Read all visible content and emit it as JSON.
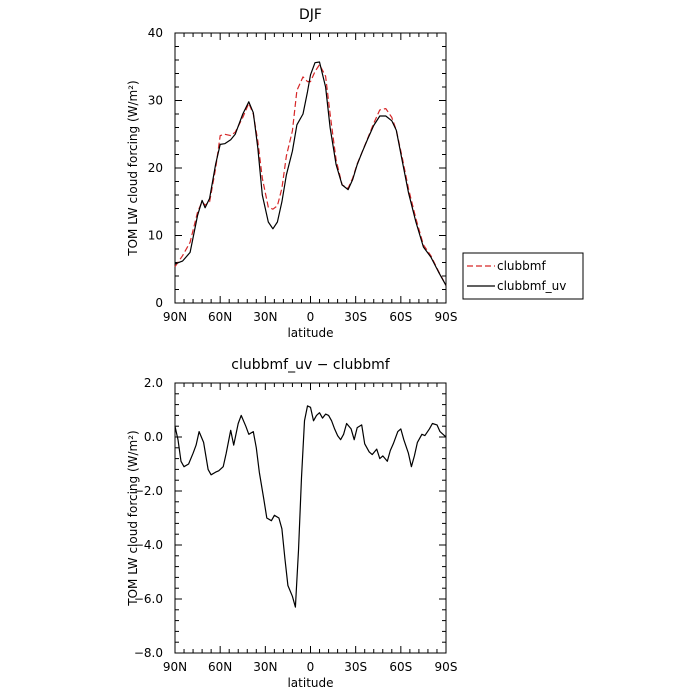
{
  "chart_data": [
    {
      "type": "line",
      "title": "DJF",
      "xlabel": "latitude",
      "ylabel": "TOM LW cloud forcing (W/m²)",
      "xlim": [
        90,
        -90
      ],
      "ylim": [
        0,
        40
      ],
      "x_ticks": [
        90,
        60,
        30,
        0,
        -30,
        -60,
        -90
      ],
      "x_tick_labels": [
        "90N",
        "60N",
        "30N",
        "0",
        "30S",
        "60S",
        "90S"
      ],
      "y_ticks": [
        0,
        10,
        20,
        30,
        40
      ],
      "y_tick_labels": [
        "0",
        "10",
        "20",
        "30",
        "40"
      ],
      "legend_position": "right-bottom outside",
      "series": [
        {
          "name": "clubbmf",
          "color": "#d62728",
          "dash": "dashed",
          "x": [
            90,
            85,
            80,
            75,
            72,
            70,
            67,
            63,
            60,
            57,
            53,
            50,
            45,
            41,
            38,
            35,
            32,
            28,
            25,
            22,
            19,
            16,
            12,
            9,
            5,
            2,
            0,
            -3,
            -6,
            -10,
            -13,
            -17,
            -21,
            -25,
            -28,
            -31,
            -34,
            -38,
            -42,
            -46,
            -50,
            -54,
            -57,
            -61,
            -65,
            -70,
            -75,
            -80,
            -85,
            -90
          ],
          "y": [
            5.4,
            7,
            9,
            13.5,
            15,
            14.5,
            15,
            20,
            24.8,
            25,
            24.8,
            25.3,
            27.5,
            29.6,
            28,
            24,
            18.5,
            14.2,
            13.9,
            14.4,
            17,
            21.8,
            25.5,
            31.5,
            33.5,
            32.8,
            32.8,
            34.3,
            35.3,
            33.6,
            28,
            21.2,
            17.5,
            17,
            18.5,
            20.6,
            22.2,
            24.4,
            26.6,
            28.6,
            28.8,
            27.5,
            25.6,
            21.5,
            17,
            12.5,
            8.6,
            7,
            4.7,
            2.6
          ]
        },
        {
          "name": "clubbmf_uv",
          "color": "#000000",
          "dash": "solid",
          "x": [
            90,
            85,
            80,
            75,
            72,
            70,
            67,
            63,
            60,
            57,
            53,
            50,
            45,
            41,
            38,
            35,
            32,
            28,
            25,
            22,
            19,
            16,
            12,
            9,
            5,
            2,
            0,
            -3,
            -6,
            -10,
            -13,
            -17,
            -21,
            -25,
            -28,
            -31,
            -34,
            -38,
            -42,
            -46,
            -50,
            -54,
            -57,
            -61,
            -65,
            -70,
            -75,
            -80,
            -85,
            -90
          ],
          "y": [
            5.8,
            6.2,
            7.5,
            13,
            15.2,
            14.1,
            15.5,
            20.6,
            23.5,
            23.6,
            24.2,
            25,
            28,
            29.8,
            28.2,
            23,
            16,
            12,
            11,
            12,
            15,
            19,
            22.5,
            26.4,
            28,
            31.3,
            33.8,
            35.6,
            35.7,
            32,
            26,
            20.5,
            17.5,
            16.8,
            18.3,
            20.5,
            22.2,
            24.3,
            26.3,
            27.7,
            27.7,
            27,
            25.6,
            21,
            16.4,
            12,
            8.3,
            6.8,
            4.6,
            2.6
          ]
        }
      ]
    },
    {
      "type": "line",
      "title": "clubbmf_uv − clubbmf",
      "xlabel": "latitude",
      "ylabel": "TOM LW cloud forcing (W/m²)",
      "xlim": [
        90,
        -90
      ],
      "ylim": [
        -8,
        2
      ],
      "x_ticks": [
        90,
        60,
        30,
        0,
        -30,
        -60,
        -90
      ],
      "x_tick_labels": [
        "90N",
        "60N",
        "30N",
        "0",
        "30S",
        "60S",
        "90S"
      ],
      "y_ticks": [
        -8,
        -6,
        -4,
        -2,
        0,
        2
      ],
      "y_tick_labels": [
        "−8.0",
        "−6.0",
        "−4.0",
        "−2.0",
        "0.0",
        "2.0"
      ],
      "series": [
        {
          "color": "#000000",
          "dash": "solid",
          "x": [
            90,
            88,
            86,
            84,
            81,
            78,
            76,
            74,
            71,
            68,
            66,
            63,
            61,
            58,
            56,
            53,
            51,
            48,
            46,
            43,
            41,
            38,
            36,
            34,
            31,
            29,
            26,
            24,
            21,
            19,
            17,
            15,
            12,
            10,
            8,
            6,
            4,
            2,
            0,
            -2,
            -4,
            -6,
            -8,
            -10,
            -12,
            -14,
            -16,
            -18,
            -20,
            -22,
            -24,
            -27,
            -29,
            -31,
            -34,
            -36,
            -39,
            -41,
            -44,
            -46,
            -48,
            -51,
            -53,
            -55,
            -58,
            -60,
            -62,
            -65,
            -67,
            -69,
            -71,
            -74,
            -76,
            -79,
            -81,
            -84,
            -86,
            -88,
            -90
          ],
          "y": [
            0.4,
            -0.1,
            -0.9,
            -1.1,
            -1,
            -0.6,
            -0.3,
            0.2,
            -0.2,
            -1.2,
            -1.4,
            -1.3,
            -1.25,
            -1.1,
            -0.6,
            0.25,
            -0.3,
            0.5,
            0.8,
            0.4,
            0.1,
            0.2,
            -0.4,
            -1.3,
            -2.3,
            -3,
            -3.1,
            -2.9,
            -3,
            -3.4,
            -4.5,
            -5.5,
            -5.9,
            -6.3,
            -4.2,
            -1.5,
            0.6,
            1.15,
            1.1,
            0.6,
            0.8,
            0.9,
            0.7,
            0.85,
            0.8,
            0.6,
            0.3,
            0.05,
            -0.1,
            0.1,
            0.5,
            0.3,
            -0.1,
            0.35,
            0.45,
            -0.25,
            -0.55,
            -0.65,
            -0.45,
            -0.8,
            -0.7,
            -0.9,
            -0.5,
            -0.25,
            0.2,
            0.3,
            -0.1,
            -0.6,
            -1.1,
            -0.7,
            -0.2,
            0.1,
            0.05,
            0.3,
            0.5,
            0.45,
            0.2,
            0.1,
            0
          ]
        }
      ]
    }
  ]
}
